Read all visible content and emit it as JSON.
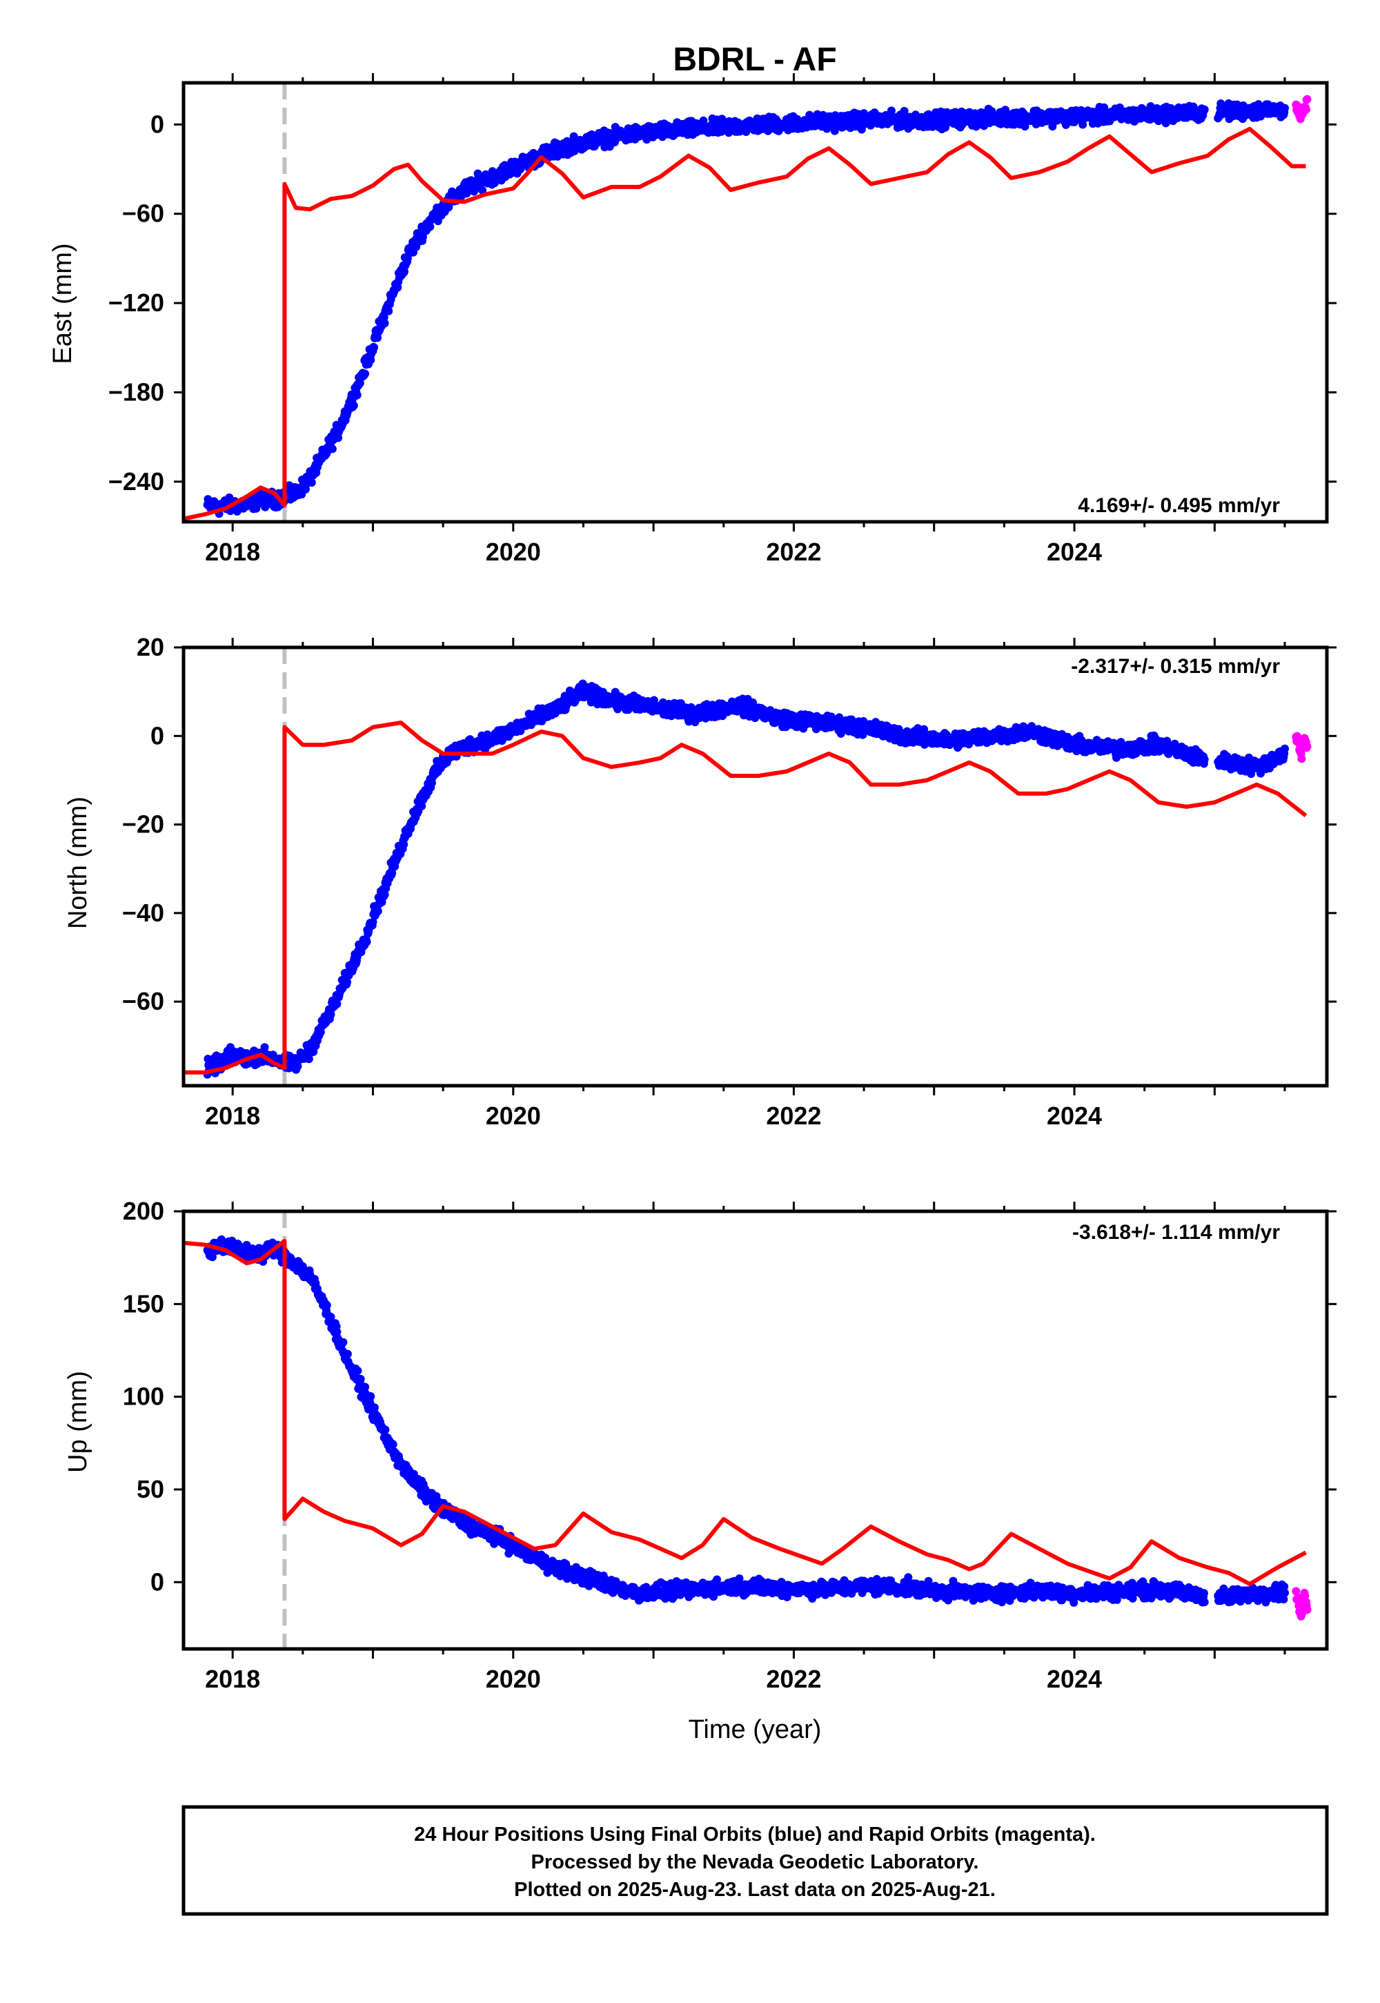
{
  "title": "BDRL - AF",
  "footer": {
    "lines": [
      "24 Hour Positions Using Final Orbits (blue) and Rapid Orbits (magenta).",
      "Processed by the Nevada Geodetic Laboratory.",
      "Plotted on 2025-Aug-23. Last data on 2025-Aug-21."
    ]
  },
  "colors": {
    "final": "#0000ff",
    "rapid": "#ff00ff",
    "model": "#ff0000",
    "event_line": "#c0c0c0",
    "frame": "#000000"
  },
  "chart_data": [
    {
      "type": "scatter",
      "ylabel": "East (mm)",
      "xlabel": "",
      "rate": "4.169+/- 0.495 mm/yr",
      "xlim": [
        2017.65,
        2025.8
      ],
      "ylim": [
        -267,
        28
      ],
      "xticks": [
        2018,
        2020,
        2022,
        2024
      ],
      "yticks": [
        0,
        -60,
        -120,
        -180,
        -240
      ],
      "event": 2018.37,
      "series": [
        {
          "key": "final",
          "x": [
            2017.82,
            2017.9,
            2018.0,
            2018.1,
            2018.2,
            2018.3,
            2018.37,
            2018.45,
            2018.55,
            2018.65,
            2018.75,
            2018.85,
            2018.95,
            2019.05,
            2019.15,
            2019.25,
            2019.35,
            2019.45,
            2019.55,
            2019.65,
            2019.75,
            2019.85,
            2019.95,
            2020.05,
            2020.2,
            2020.4,
            2020.6,
            2020.8,
            2021.0,
            2021.3,
            2021.6,
            2022.0,
            2022.3,
            2022.6,
            2023.0,
            2023.3,
            2023.6,
            2024.0,
            2024.3,
            2024.6,
            2024.9,
            2025.2,
            2025.5
          ],
          "y": [
            -256,
            -257,
            -256,
            -255,
            -252,
            -252,
            -250,
            -248,
            -238,
            -222,
            -206,
            -185,
            -162,
            -136,
            -112,
            -88,
            -72,
            -60,
            -52,
            -44,
            -39,
            -35,
            -31,
            -27,
            -21,
            -14,
            -10,
            -7,
            -5,
            -3,
            -1,
            1,
            2,
            3,
            3,
            4,
            5,
            5,
            6,
            7,
            8,
            9,
            10
          ]
        },
        {
          "key": "rapid",
          "x": [
            2025.58,
            2025.6,
            2025.62,
            2025.64,
            2025.66
          ],
          "y": [
            12,
            8,
            5,
            10,
            14
          ]
        },
        {
          "key": "model",
          "x": [
            2017.65,
            2017.8,
            2017.95,
            2018.1,
            2018.2,
            2018.3,
            2018.37,
            2018.37,
            2018.45,
            2018.55,
            2018.7,
            2018.85,
            2019.0,
            2019.15,
            2019.25,
            2019.35,
            2019.5,
            2019.65,
            2019.8,
            2020.0,
            2020.1,
            2020.2,
            2020.35,
            2020.5,
            2020.7,
            2020.9,
            2021.05,
            2021.25,
            2021.4,
            2021.55,
            2021.75,
            2021.95,
            2022.1,
            2022.25,
            2022.4,
            2022.55,
            2022.75,
            2022.95,
            2023.1,
            2023.25,
            2023.4,
            2023.55,
            2023.75,
            2023.95,
            2024.1,
            2024.25,
            2024.4,
            2024.55,
            2024.75,
            2024.95,
            2025.1,
            2025.25,
            2025.4,
            2025.55,
            2025.65
          ],
          "y": [
            -265,
            -262,
            -258,
            -250,
            -244,
            -248,
            -256,
            -40,
            -56,
            -57,
            -50,
            -48,
            -41,
            -30,
            -27,
            -38,
            -51,
            -52,
            -47,
            -43,
            -33,
            -22,
            -33,
            -49,
            -42,
            -42,
            -35,
            -21,
            -29,
            -44,
            -39,
            -35,
            -23,
            -16,
            -27,
            -40,
            -36,
            -32,
            -20,
            -12,
            -22,
            -36,
            -32,
            -25,
            -16,
            -8,
            -20,
            -32,
            -26,
            -21,
            -10,
            -3,
            -15,
            -28,
            -28
          ]
        }
      ]
    },
    {
      "type": "scatter",
      "ylabel": "North (mm)",
      "xlabel": "",
      "rate": "-2.317+/- 0.315 mm/yr",
      "xlim": [
        2017.65,
        2025.8
      ],
      "ylim": [
        -79,
        20
      ],
      "xticks": [
        2018,
        2020,
        2022,
        2024
      ],
      "yticks": [
        20,
        0,
        -20,
        -40,
        -60
      ],
      "event": 2018.37,
      "series": [
        {
          "key": "final",
          "x": [
            2017.82,
            2017.9,
            2018.0,
            2018.1,
            2018.2,
            2018.3,
            2018.37,
            2018.45,
            2018.55,
            2018.65,
            2018.75,
            2018.85,
            2018.95,
            2019.05,
            2019.15,
            2019.25,
            2019.35,
            2019.45,
            2019.55,
            2019.7,
            2019.9,
            2020.1,
            2020.3,
            2020.5,
            2020.7,
            2020.9,
            2021.1,
            2021.3,
            2021.6,
            2021.9,
            2022.2,
            2022.5,
            2022.8,
            2023.1,
            2023.4,
            2023.7,
            2024.0,
            2024.3,
            2024.6,
            2024.9,
            2025.1,
            2025.3,
            2025.5
          ],
          "y": [
            -75,
            -74,
            -72,
            -73,
            -72,
            -73,
            -74,
            -74,
            -71,
            -65,
            -59,
            -52,
            -45,
            -37,
            -29,
            -21,
            -14,
            -8,
            -4,
            -2,
            0,
            3,
            6,
            10,
            8,
            7,
            6,
            5,
            7,
            4,
            3,
            2,
            0,
            -1,
            0,
            1,
            -2,
            -3,
            -2,
            -5,
            -6,
            -7,
            -4
          ]
        },
        {
          "key": "rapid",
          "x": [
            2025.58,
            2025.6,
            2025.62,
            2025.64,
            2025.66
          ],
          "y": [
            0,
            -2,
            -4,
            -1,
            -3
          ]
        },
        {
          "key": "model",
          "x": [
            2017.65,
            2017.8,
            2017.95,
            2018.1,
            2018.2,
            2018.3,
            2018.37,
            2018.37,
            2018.5,
            2018.65,
            2018.85,
            2019.0,
            2019.2,
            2019.35,
            2019.5,
            2019.65,
            2019.85,
            2020.0,
            2020.2,
            2020.35,
            2020.5,
            2020.7,
            2020.9,
            2021.05,
            2021.2,
            2021.35,
            2021.55,
            2021.75,
            2021.95,
            2022.1,
            2022.25,
            2022.4,
            2022.55,
            2022.75,
            2022.95,
            2023.1,
            2023.25,
            2023.4,
            2023.6,
            2023.8,
            2023.95,
            2024.1,
            2024.25,
            2024.4,
            2024.6,
            2024.8,
            2025.0,
            2025.15,
            2025.3,
            2025.45,
            2025.65
          ],
          "y": [
            -76,
            -76,
            -75,
            -73,
            -72,
            -74,
            -75,
            2,
            -2,
            -2,
            -1,
            2,
            3,
            -1,
            -4,
            -4,
            -4,
            -2,
            1,
            0,
            -5,
            -7,
            -6,
            -5,
            -2,
            -4,
            -9,
            -9,
            -8,
            -6,
            -4,
            -6,
            -11,
            -11,
            -10,
            -8,
            -6,
            -8,
            -13,
            -13,
            -12,
            -10,
            -8,
            -10,
            -15,
            -16,
            -15,
            -13,
            -11,
            -13,
            -18
          ]
        }
      ]
    },
    {
      "type": "scatter",
      "ylabel": "Up (mm)",
      "xlabel": "Time (year)",
      "rate": "-3.618+/- 1.114 mm/yr",
      "xlim": [
        2017.65,
        2025.8
      ],
      "ylim": [
        -36,
        200
      ],
      "xticks": [
        2018,
        2020,
        2022,
        2024
      ],
      "yticks": [
        200,
        150,
        100,
        50,
        0
      ],
      "event": 2018.37,
      "series": [
        {
          "key": "final",
          "x": [
            2017.82,
            2017.9,
            2018.0,
            2018.1,
            2018.2,
            2018.3,
            2018.37,
            2018.45,
            2018.55,
            2018.65,
            2018.75,
            2018.85,
            2018.95,
            2019.05,
            2019.15,
            2019.25,
            2019.35,
            2019.45,
            2019.55,
            2019.7,
            2019.9,
            2020.1,
            2020.3,
            2020.5,
            2020.7,
            2020.9,
            2021.1,
            2021.3,
            2021.6,
            2021.9,
            2022.2,
            2022.5,
            2022.8,
            2023.1,
            2023.4,
            2023.7,
            2024.0,
            2024.3,
            2024.6,
            2024.9,
            2025.1,
            2025.3,
            2025.5
          ],
          "y": [
            178,
            182,
            180,
            178,
            177,
            180,
            176,
            172,
            165,
            150,
            132,
            115,
            100,
            85,
            70,
            58,
            50,
            42,
            37,
            30,
            24,
            15,
            8,
            3,
            -2,
            -6,
            -5,
            -4,
            -2,
            -3,
            -4,
            -2,
            -3,
            -5,
            -6,
            -5,
            -6,
            -5,
            -4,
            -7,
            -8,
            -6,
            -5
          ]
        },
        {
          "key": "rapid",
          "x": [
            2025.58,
            2025.6,
            2025.62,
            2025.64,
            2025.66
          ],
          "y": [
            -5,
            -12,
            -18,
            -8,
            -15
          ]
        },
        {
          "key": "model",
          "x": [
            2017.65,
            2017.8,
            2017.95,
            2018.1,
            2018.2,
            2018.3,
            2018.37,
            2018.37,
            2018.5,
            2018.65,
            2018.8,
            2019.0,
            2019.2,
            2019.35,
            2019.5,
            2019.65,
            2019.85,
            2020.0,
            2020.15,
            2020.3,
            2020.5,
            2020.7,
            2020.9,
            2021.05,
            2021.2,
            2021.35,
            2021.5,
            2021.7,
            2021.9,
            2022.05,
            2022.2,
            2022.35,
            2022.55,
            2022.75,
            2022.95,
            2023.1,
            2023.25,
            2023.35,
            2023.55,
            2023.75,
            2023.95,
            2024.1,
            2024.25,
            2024.4,
            2024.55,
            2024.75,
            2024.95,
            2025.1,
            2025.25,
            2025.45,
            2025.65
          ],
          "y": [
            183,
            182,
            179,
            172,
            174,
            180,
            184,
            34,
            45,
            38,
            33,
            29,
            20,
            26,
            41,
            38,
            30,
            24,
            18,
            20,
            37,
            27,
            23,
            18,
            13,
            20,
            34,
            24,
            18,
            14,
            10,
            18,
            30,
            22,
            15,
            12,
            7,
            10,
            26,
            18,
            10,
            6,
            2,
            8,
            22,
            13,
            8,
            5,
            -1,
            8,
            16
          ]
        }
      ]
    }
  ]
}
